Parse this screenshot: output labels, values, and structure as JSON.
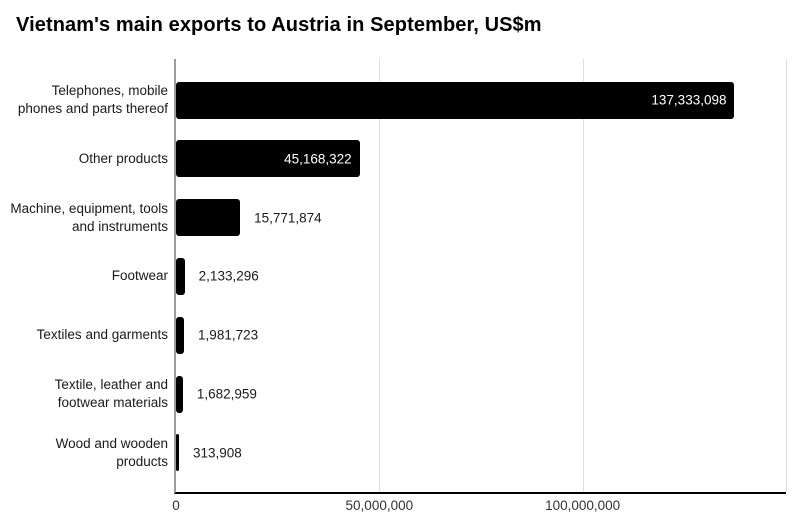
{
  "title": "Vietnam's main exports to Austria in September, US$m",
  "colors": {
    "bar": "#000000",
    "grid": "#dedede",
    "axis_y": "#9c9c9c",
    "axis_x": "#000000",
    "value_inside": "#ffffff",
    "value_outside": "#1a1a1a",
    "category_label": "#1a1a1a",
    "tick_label": "#333333"
  },
  "chart_data": {
    "type": "bar",
    "orientation": "horizontal",
    "title": "Vietnam's main exports to Austria in September, US$m",
    "categories": [
      "Telephones, mobile phones and parts thereof",
      "Other products",
      "Machine, equipment, tools and instruments",
      "Footwear",
      "Textiles and garments",
      "Textile, leather and footwear materials",
      "Wood and wooden products"
    ],
    "values": [
      137333098,
      45168322,
      15771874,
      2133296,
      1981723,
      1682959,
      313908
    ],
    "value_labels": [
      "137,333,098",
      "45,168,322",
      "15,771,874",
      "2,133,296",
      "1,981,723",
      "1,682,959",
      "313,908"
    ],
    "xlabel": "",
    "ylabel": "",
    "xlim": [
      0,
      150000000
    ],
    "xticks": [
      {
        "value": 0,
        "label": "0"
      },
      {
        "value": 50000000,
        "label": "50,000,000"
      },
      {
        "value": 100000000,
        "label": "100,000,000"
      }
    ],
    "grid": "vertical-gridlines-on",
    "legend": "none",
    "bar_color": "#000000"
  }
}
